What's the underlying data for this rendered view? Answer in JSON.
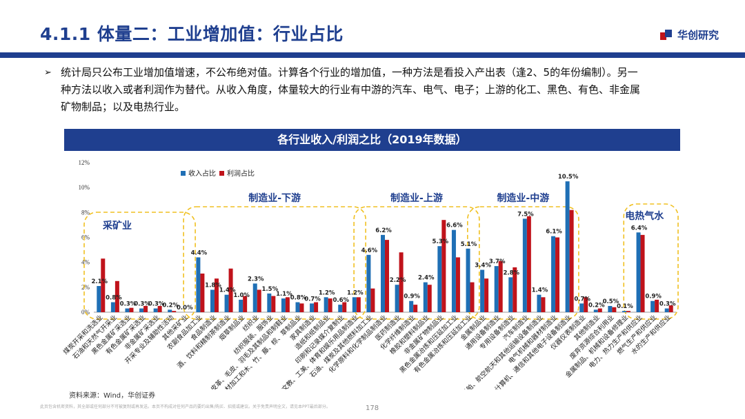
{
  "header": {
    "title": "4.1.1 体量二：工业增加值：行业占比",
    "brand_name": "华创研究",
    "brand_color": "#1f3f8f"
  },
  "bullet": {
    "lines": [
      "统计局只公布工业增加值增速，不公布绝对值。计算各个行业的增加值，一种方法是看投入产出表（逢2、5的年份编制）。另一",
      "种方法以收入或者利润作为替代。从收入角度，体量较大的行业有中游的汽车、电气、电子；上游的化工、黑色、有色、非金属",
      "矿物制品；以及电热行业。"
    ]
  },
  "footer": {
    "source": "资料来源：Wind，华创证券",
    "disclaimer": "此页包含机密资料，其全部或任何部分不可被复制或再发送。本页不构成对任何产品的要约出售/购买、招揽或建议。关于免责声明全文，请见本PPT最后部分。",
    "page_number": "178"
  },
  "chart_data": {
    "type": "bar",
    "title": "各行业收入/利润之比（2019年数据）",
    "ylim": [
      0,
      12
    ],
    "yticks": [
      "0%",
      "2%",
      "4%",
      "6%",
      "8%",
      "10%",
      "12%"
    ],
    "colors": {
      "revenue": "#1f6fb5",
      "profit": "#c0131b",
      "group_border": "#f0c020"
    },
    "series": [
      {
        "name": "收入占比",
        "values": [
          2.1,
          0.8,
          0.3,
          0.3,
          0.3,
          0.2,
          0.0,
          4.4,
          1.8,
          1.4,
          1.0,
          2.3,
          1.5,
          1.1,
          0.8,
          0.7,
          1.2,
          0.6,
          1.2,
          4.6,
          6.2,
          2.2,
          0.9,
          2.4,
          5.3,
          6.6,
          5.1,
          3.4,
          3.7,
          2.8,
          7.5,
          1.4,
          6.1,
          10.5,
          0.7,
          0.2,
          0.5,
          0.1,
          6.4,
          0.9,
          0.3
        ]
      },
      {
        "name": "利润占比",
        "values": [
          4.3,
          2.5,
          0.35,
          0.5,
          0.5,
          0.1,
          0.0,
          3.1,
          2.7,
          3.5,
          1.3,
          1.8,
          1.3,
          1.2,
          0.7,
          0.8,
          1.1,
          0.8,
          1.2,
          1.9,
          5.8,
          4.8,
          0.6,
          2.2,
          7.4,
          4.4,
          2.4,
          2.7,
          4.1,
          3.6,
          7.7,
          1.2,
          6.0,
          8.2,
          1.2,
          0.3,
          0.4,
          0.1,
          6.2,
          1.0,
          0.55
        ]
      }
    ],
    "value_labels": [
      "2.1%",
      "0.8%",
      "0.3%",
      "0.3%",
      "0.3%",
      "0.2%",
      "0.0%",
      "4.4%",
      "1.8%",
      "1.4%",
      "1.0%",
      "2.3%",
      "1.5%",
      "1.1%",
      "0.8%",
      "0.7%",
      "1.2%",
      "0.6%",
      "1.2%",
      "4.6%",
      "6.2%",
      "2.2%",
      "0.9%",
      "2.4%",
      "5.3%",
      "6.6%",
      "5.1%",
      "3.4%",
      "3.7%",
      "2.8%",
      "7.5%",
      "1.4%",
      "6.1%",
      "10.5%",
      "0.7%",
      "0.2%",
      "0.5%",
      "0.1%",
      "6.4%",
      "0.9%",
      "0.3%"
    ],
    "categories": [
      "煤炭开采和洗选业",
      "石油和天然气开采业",
      "黑色金属矿采选业",
      "有色金属矿采选业",
      "非金属矿采选业",
      "开采专业及辅助性活动",
      "其他采矿业",
      "农副食品加工业",
      "食品制造业",
      "酒、饮料和精制茶制造业",
      "烟草制品业",
      "纺织业",
      "纺织服装、服饰业",
      "皮革、毛皮、羽毛及其制品和制鞋业",
      "木材加工和木、竹、藤、棕、草制品业",
      "家具制造业",
      "造纸和纸制品业",
      "印刷和记录媒介复制业",
      "文教、工美、体育和娱乐用品制造业",
      "石油、煤炭及其他燃料加工业",
      "化学原料和化学制品制造业",
      "医药制造业",
      "化学纤维制造业",
      "橡胶和塑料制品业",
      "非金属矿物制品业",
      "黑色金属冶炼和压延加工业",
      "有色金属冶炼和压延加工业",
      "金属制品业",
      "通用设备制造业",
      "专用设备制造业",
      "汽车制造业",
      "铁路、船舶、航空航天和其他运输设备制造业",
      "电气机械和器材制造业",
      "计算机、通信和其他电子设备制造业",
      "仪器仪表制造业",
      "其他制造业",
      "废弃资源综合利用业",
      "金属制品、机械和设备修理业",
      "电力、热力生产和供应业",
      "燃气生产和供应业",
      "水的生产和供应业"
    ],
    "groups": [
      {
        "name": "采矿业",
        "start": 0,
        "end": 6
      },
      {
        "name": "制造业-下游",
        "start": 7,
        "end": 18
      },
      {
        "name": "制造业-上游",
        "start": 19,
        "end": 26
      },
      {
        "name": "制造业-中游",
        "start": 27,
        "end": 33
      },
      {
        "name": "电热气水",
        "start": 38,
        "end": 40
      }
    ]
  }
}
